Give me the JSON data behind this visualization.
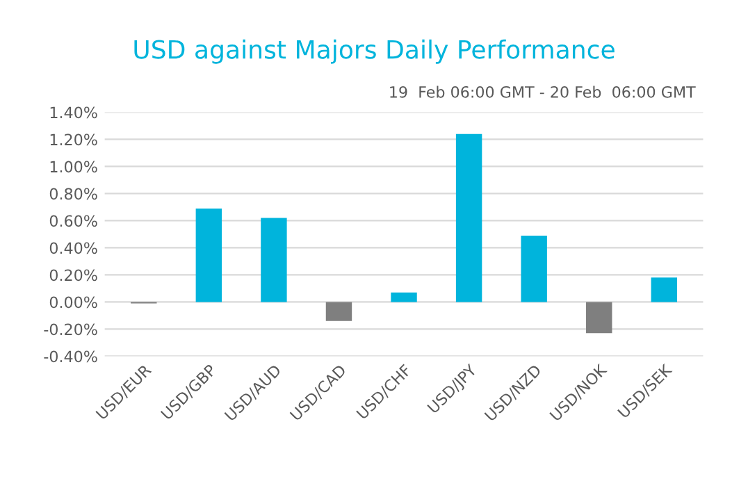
{
  "chart_data": {
    "type": "bar",
    "title": "USD against Majors Daily Performance",
    "subtitle": "19  Feb 06:00 GMT - 20 Feb  06:00 GMT",
    "categories": [
      "USD/EUR",
      "USD/GBP",
      "USD/AUD",
      "USD/CAD",
      "USD/CHF",
      "USD/JPY",
      "USD/NZD",
      "USD/NOK",
      "USD/SEK"
    ],
    "values": [
      -0.01,
      0.69,
      0.62,
      -0.14,
      0.07,
      1.24,
      0.49,
      -0.23,
      0.18
    ],
    "colors": [
      "#7f7f7f",
      "#00b4dc",
      "#00b4dc",
      "#7f7f7f",
      "#00b4dc",
      "#00b4dc",
      "#00b4dc",
      "#7f7f7f",
      "#00b4dc"
    ],
    "ylim": [
      -0.4,
      1.4
    ],
    "yticks": [
      {
        "value": -0.4,
        "label": "-0.40%"
      },
      {
        "value": -0.2,
        "label": "-0.20%"
      },
      {
        "value": 0,
        "label": "0.00%"
      },
      {
        "value": 0.2,
        "label": "0.20%"
      },
      {
        "value": 0.4,
        "label": "0.40%"
      },
      {
        "value": 0.6,
        "label": "0.60%"
      },
      {
        "value": 0.8,
        "label": "0.80%"
      },
      {
        "value": 1.0,
        "label": "1.00%"
      },
      {
        "value": 1.2,
        "label": "1.20%"
      },
      {
        "value": 1.4,
        "label": "1.40%"
      }
    ],
    "grid": "y"
  }
}
